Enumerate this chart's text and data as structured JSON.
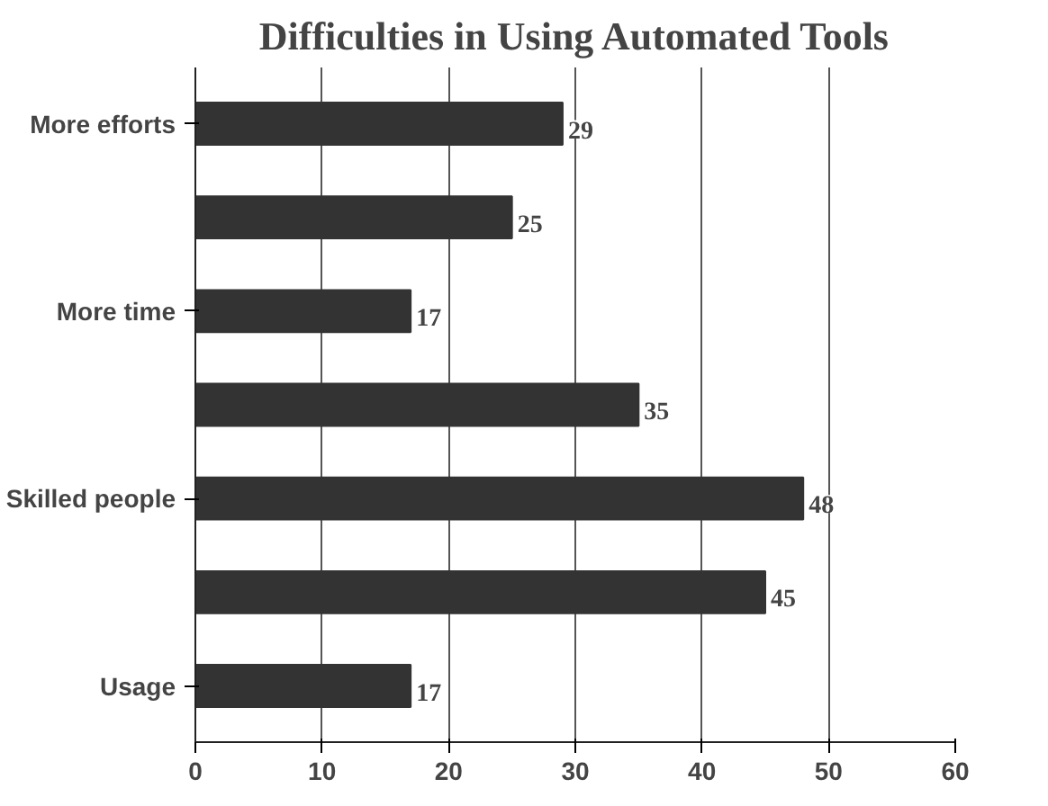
{
  "chart_data": {
    "type": "bar",
    "orientation": "horizontal",
    "title": "Difficulties in Using Automated Tools",
    "categories": [
      "More efforts",
      null,
      "More time",
      null,
      "Skilled people",
      null,
      "Usage"
    ],
    "values": [
      29,
      25,
      17,
      35,
      48,
      45,
      17
    ],
    "color": "#333333",
    "xlim": [
      0,
      60
    ],
    "xticks": [
      0,
      10,
      20,
      30,
      40,
      50,
      60
    ],
    "grid": "x",
    "data_labels": true
  }
}
